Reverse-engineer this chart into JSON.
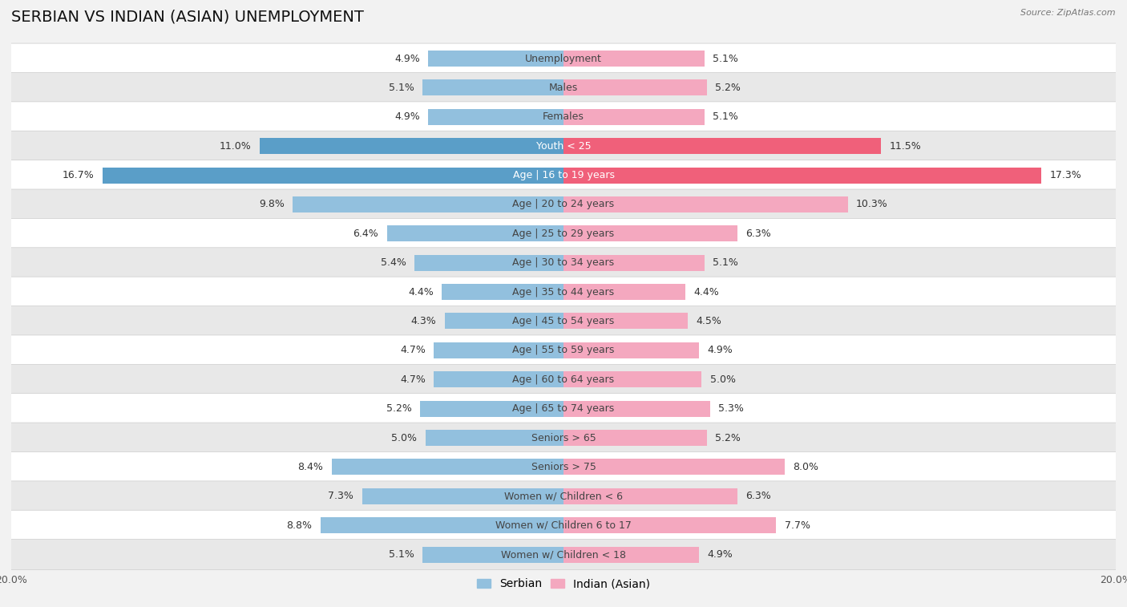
{
  "title": "SERBIAN VS INDIAN (ASIAN) UNEMPLOYMENT",
  "source": "Source: ZipAtlas.com",
  "categories": [
    "Unemployment",
    "Males",
    "Females",
    "Youth < 25",
    "Age | 16 to 19 years",
    "Age | 20 to 24 years",
    "Age | 25 to 29 years",
    "Age | 30 to 34 years",
    "Age | 35 to 44 years",
    "Age | 45 to 54 years",
    "Age | 55 to 59 years",
    "Age | 60 to 64 years",
    "Age | 65 to 74 years",
    "Seniors > 65",
    "Seniors > 75",
    "Women w/ Children < 6",
    "Women w/ Children 6 to 17",
    "Women w/ Children < 18"
  ],
  "serbian_values": [
    4.9,
    5.1,
    4.9,
    11.0,
    16.7,
    9.8,
    6.4,
    5.4,
    4.4,
    4.3,
    4.7,
    4.7,
    5.2,
    5.0,
    8.4,
    7.3,
    8.8,
    5.1
  ],
  "indian_values": [
    5.1,
    5.2,
    5.1,
    11.5,
    17.3,
    10.3,
    6.3,
    5.1,
    4.4,
    4.5,
    4.9,
    5.0,
    5.3,
    5.2,
    8.0,
    6.3,
    7.7,
    4.9
  ],
  "serbian_color": "#92c0de",
  "indian_color": "#f4a8bf",
  "serbian_highlight_color": "#5a9ec8",
  "indian_highlight_color": "#f0607a",
  "highlight_rows": [
    3,
    4
  ],
  "background_color": "#f2f2f2",
  "row_light": "#ffffff",
  "row_dark": "#e8e8e8",
  "xlim": 20.0,
  "title_fontsize": 14,
  "label_fontsize": 9,
  "value_fontsize": 9,
  "tick_fontsize": 9,
  "legend_fontsize": 10
}
